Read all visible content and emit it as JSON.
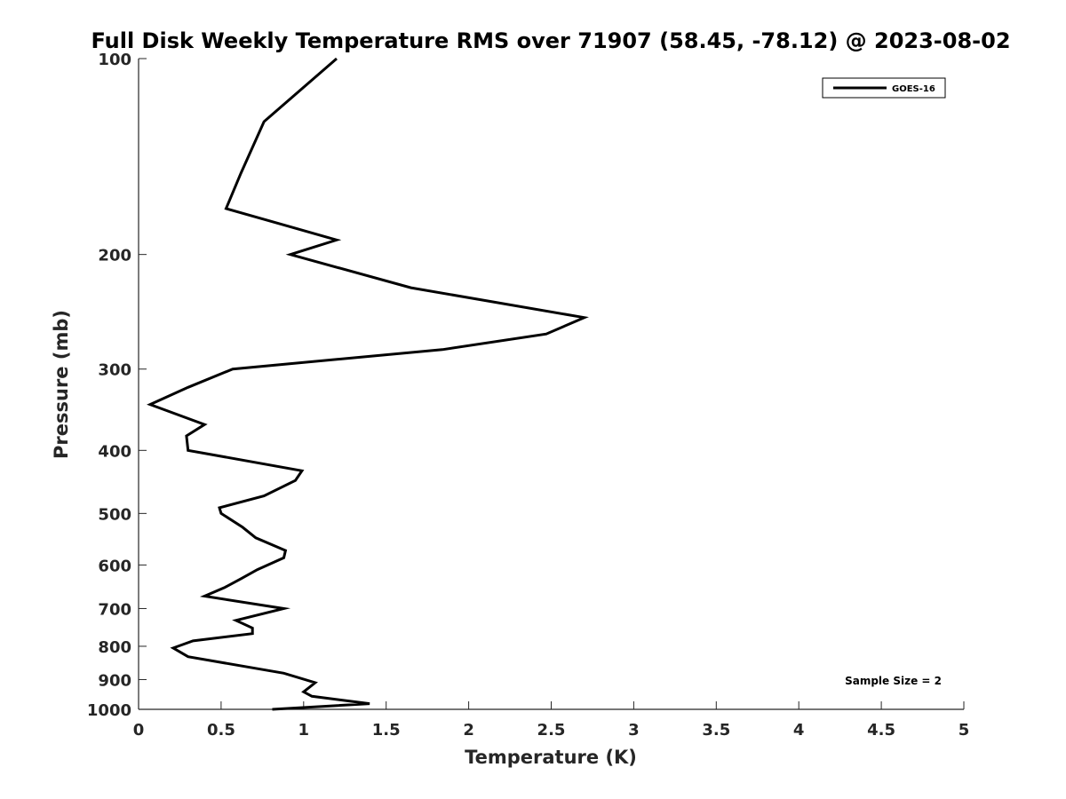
{
  "chart_data": {
    "type": "line",
    "title": "Full Disk Weekly Temperature RMS over 71907 (58.45, -78.12) @ 2023-08-02",
    "xlabel": "Temperature (K)",
    "ylabel": "Pressure (mb)",
    "xlim": [
      0,
      5
    ],
    "ylim": [
      100,
      1000
    ],
    "y_scale": "log",
    "y_reversed": true,
    "x_ticks": [
      0,
      0.5,
      1,
      1.5,
      2,
      2.5,
      3,
      3.5,
      4,
      4.5,
      5
    ],
    "x_tick_labels": [
      "0",
      "0.5",
      "1",
      "1.5",
      "2",
      "2.5",
      "3",
      "3.5",
      "4",
      "4.5",
      "5"
    ],
    "y_ticks": [
      100,
      200,
      300,
      400,
      500,
      600,
      700,
      800,
      900,
      1000
    ],
    "y_tick_labels": [
      "100",
      "200",
      "300",
      "400",
      "500",
      "600",
      "700",
      "800",
      "900",
      "1000"
    ],
    "grid": false,
    "legend_position": "top-right",
    "annotation": "Sample Size = 2",
    "series": [
      {
        "name": "GOES-16",
        "color": "#000000",
        "points": [
          [
            1.2,
            100
          ],
          [
            0.76,
            125
          ],
          [
            0.62,
            150
          ],
          [
            0.53,
            170
          ],
          [
            1.2,
            190
          ],
          [
            0.92,
            200
          ],
          [
            1.65,
            225
          ],
          [
            2.7,
            250
          ],
          [
            2.47,
            265
          ],
          [
            1.84,
            280
          ],
          [
            0.57,
            300
          ],
          [
            0.3,
            320
          ],
          [
            0.07,
            340
          ],
          [
            0.4,
            365
          ],
          [
            0.29,
            380
          ],
          [
            0.3,
            400
          ],
          [
            0.99,
            430
          ],
          [
            0.95,
            445
          ],
          [
            0.76,
            470
          ],
          [
            0.49,
            490
          ],
          [
            0.5,
            500
          ],
          [
            0.63,
            525
          ],
          [
            0.71,
            545
          ],
          [
            0.89,
            570
          ],
          [
            0.88,
            585
          ],
          [
            0.72,
            610
          ],
          [
            0.62,
            630
          ],
          [
            0.52,
            650
          ],
          [
            0.4,
            670
          ],
          [
            0.88,
            700
          ],
          [
            0.59,
            730
          ],
          [
            0.69,
            750
          ],
          [
            0.69,
            765
          ],
          [
            0.33,
            785
          ],
          [
            0.21,
            805
          ],
          [
            0.3,
            830
          ],
          [
            0.88,
            880
          ],
          [
            1.07,
            910
          ],
          [
            1.0,
            940
          ],
          [
            1.05,
            955
          ],
          [
            1.4,
            980
          ],
          [
            0.81,
            1000
          ]
        ]
      }
    ]
  }
}
